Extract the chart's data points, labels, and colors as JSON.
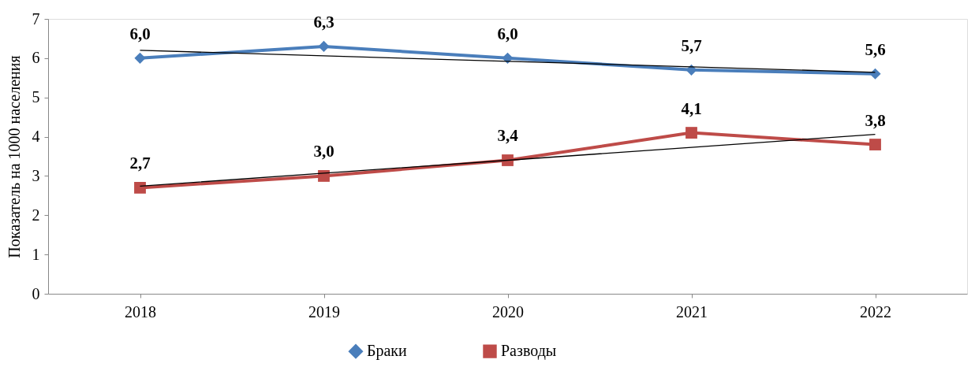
{
  "chart_data": {
    "type": "line",
    "ylabel": "Показатель на 1000 населения",
    "categories": [
      "2018",
      "2019",
      "2020",
      "2021",
      "2022"
    ],
    "series": [
      {
        "name": "Браки",
        "color": "#4a7ebb",
        "marker": "diamond",
        "values": [
          6.0,
          6.3,
          6.0,
          5.7,
          5.6
        ],
        "value_labels": [
          "6,0",
          "6,3",
          "6,0",
          "5,7",
          "5,6"
        ]
      },
      {
        "name": "Разводы",
        "color": "#be4b48",
        "marker": "square",
        "values": [
          2.7,
          3.0,
          3.4,
          4.1,
          3.8
        ],
        "value_labels": [
          "2,7",
          "3,0",
          "3,4",
          "4,1",
          "3,8"
        ]
      },
      {
        "type": "line",
        "color": "#000000",
        "values": [
          6.2,
          6.06,
          5.92,
          5.78,
          5.64
        ]
      },
      {
        "type": "line",
        "color": "#000000",
        "values": [
          2.74,
          3.07,
          3.4,
          3.73,
          4.06
        ]
      }
    ],
    "ylim": [
      0,
      7
    ],
    "yticks": [
      0,
      1,
      2,
      3,
      4,
      5,
      6,
      7
    ],
    "grid": false,
    "legend": "bottom"
  }
}
